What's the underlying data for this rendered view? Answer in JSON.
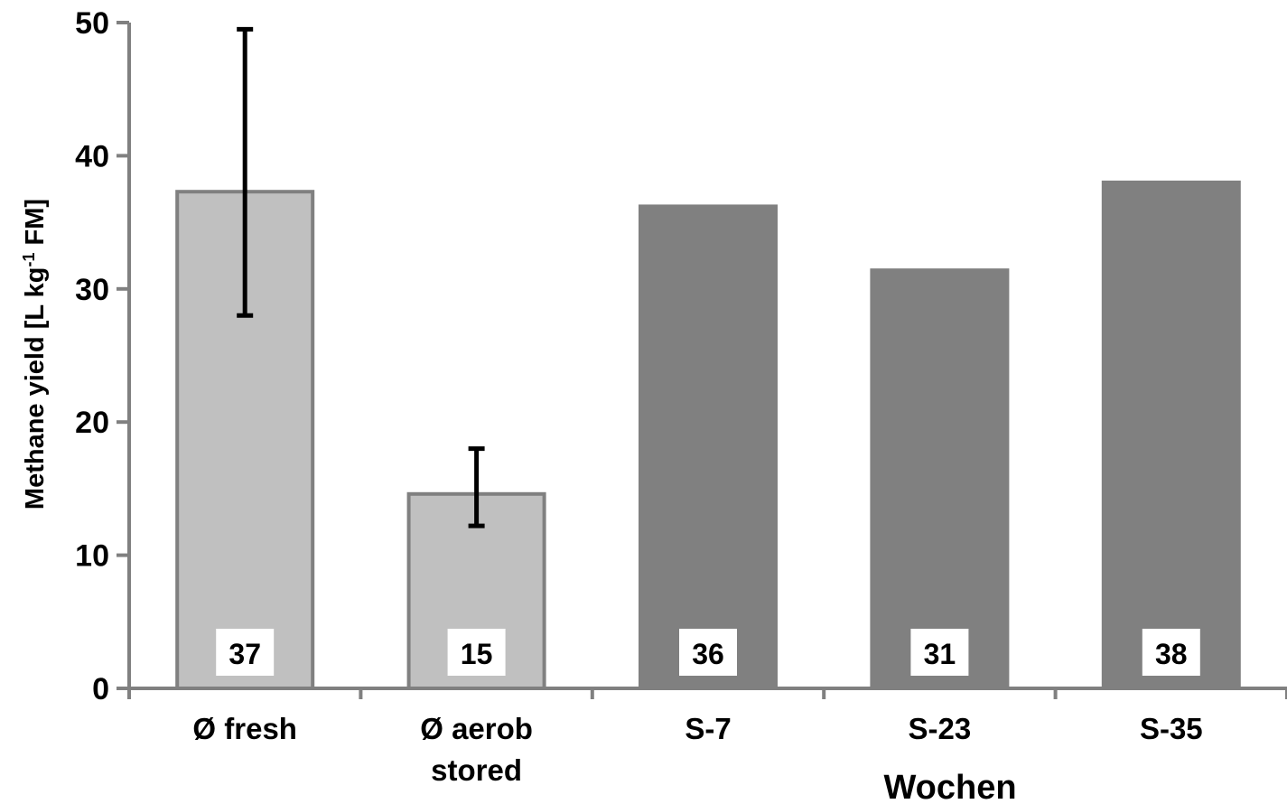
{
  "chart_data": {
    "type": "bar",
    "title": "",
    "ylabel": "Methane yield  [L kg-1 FM]",
    "ylabel_parts": {
      "main": "Methane yield  [L kg",
      "sup": "-1",
      "tail": " FM]"
    },
    "group_label": "Wochen",
    "ylim": [
      0,
      50
    ],
    "yticks": [
      0,
      10,
      20,
      30,
      40,
      50
    ],
    "grid": false,
    "legend": "none",
    "categories": [
      {
        "label_lines": [
          "Ø fresh"
        ],
        "value": 37.3,
        "data_label": "37",
        "error": [
          28,
          49.5
        ],
        "style": "light"
      },
      {
        "label_lines": [
          "Ø aerob",
          "stored"
        ],
        "value": 14.6,
        "data_label": "15",
        "error": [
          12.2,
          18
        ],
        "style": "light"
      },
      {
        "label_lines": [
          "S-7"
        ],
        "value": 36.2,
        "data_label": "36",
        "error": null,
        "style": "dark"
      },
      {
        "label_lines": [
          "S-23"
        ],
        "value": 31.4,
        "data_label": "31",
        "error": null,
        "style": "dark"
      },
      {
        "label_lines": [
          "S-35"
        ],
        "value": 38,
        "data_label": "38",
        "error": null,
        "style": "dark"
      }
    ],
    "colors": {
      "light_fill": "#c0c0c0",
      "light_border": "#808080",
      "dark_fill": "#808080",
      "axis": "#808080",
      "error": "#000000"
    }
  }
}
